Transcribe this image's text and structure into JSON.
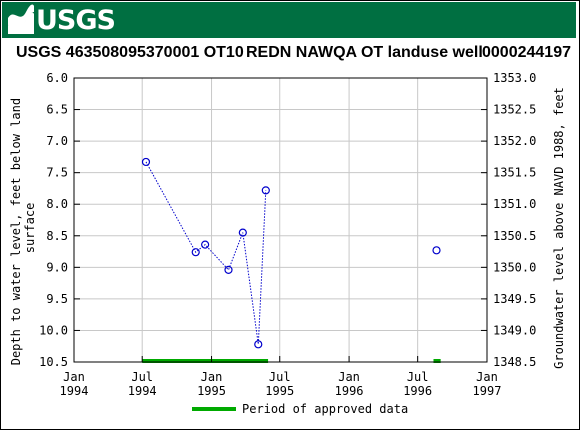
{
  "header": {
    "logo_text": "USGS",
    "site_id": "USGS 463508095370001 OT10",
    "site_name": "REDN NAWQA OT landuse well",
    "station_number": "0000244197"
  },
  "colors": {
    "banner": "#006f41",
    "series": "#0000cc",
    "approved": "#00aa00",
    "grid": "#c8c8c8"
  },
  "chart_data": {
    "type": "scatter",
    "ylabel_left": "Depth to water level, feet below land surface",
    "ylabel_right": "Groundwater level above NAVD 1988, feet",
    "ylim_left": [
      10.5,
      6.0
    ],
    "ylim_right": [
      1348.5,
      1353.0
    ],
    "yticks_left": [
      "6.0",
      "6.5",
      "7.0",
      "7.5",
      "8.0",
      "8.5",
      "9.0",
      "9.5",
      "10.0",
      "10.5"
    ],
    "yticks_right": [
      "1353.0",
      "1352.5",
      "1352.0",
      "1351.5",
      "1351.0",
      "1350.5",
      "1350.0",
      "1349.5",
      "1349.0",
      "1348.5"
    ],
    "xlim": [
      "1994-01-01",
      "1997-01-01"
    ],
    "xticks": [
      {
        "date": "1994-01-01",
        "line1": "Jan",
        "line2": "1994"
      },
      {
        "date": "1994-07-01",
        "line1": "Jul",
        "line2": "1994"
      },
      {
        "date": "1995-01-01",
        "line1": "Jan",
        "line2": "1995"
      },
      {
        "date": "1995-07-01",
        "line1": "Jul",
        "line2": "1995"
      },
      {
        "date": "1996-01-01",
        "line1": "Jan",
        "line2": "1996"
      },
      {
        "date": "1996-07-01",
        "line1": "Jul",
        "line2": "1996"
      },
      {
        "date": "1997-01-01",
        "line1": "Jan",
        "line2": "1997"
      }
    ],
    "grid": true,
    "series": [
      {
        "points": [
          {
            "date": "1994-07-11",
            "y": 7.33
          },
          {
            "date": "1994-11-20",
            "y": 8.76
          },
          {
            "date": "1994-12-15",
            "y": 8.64
          },
          {
            "date": "1995-02-15",
            "y": 9.04
          },
          {
            "date": "1995-03-25",
            "y": 8.45
          },
          {
            "date": "1995-05-05",
            "y": 10.22
          },
          {
            "date": "1995-05-25",
            "y": 7.78
          },
          {
            "date": "1996-08-20",
            "y": 8.73
          }
        ],
        "connected_until": 7
      }
    ],
    "approved_periods": [
      {
        "start": "1994-07-01",
        "end": "1995-05-31"
      },
      {
        "start": "1996-08-12",
        "end": "1996-08-31"
      }
    ],
    "legend": {
      "label": "Period of approved data",
      "placement": "bottom-center"
    }
  }
}
